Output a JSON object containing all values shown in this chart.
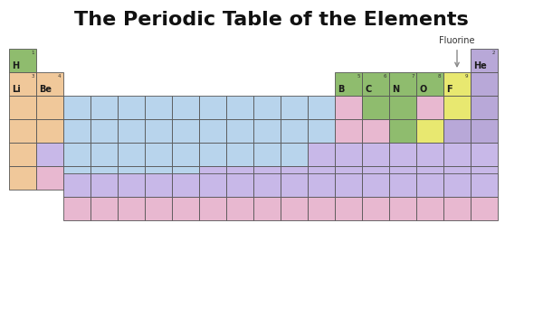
{
  "title": "The Periodic Table of the Elements",
  "title_fontsize": 16,
  "fluorine_label": "Fluorine",
  "background_color": "#ffffff",
  "colors": {
    "green": "#8fbc6e",
    "orange": "#f0c89a",
    "blue": "#b8d4ec",
    "pink": "#e8b8d0",
    "lavender": "#c8b8e8",
    "yellow": "#e8e870",
    "purple": "#b8a8d8",
    "white": "#ffffff"
  },
  "elements": [
    {
      "sym": "H",
      "num": "1",
      "col": 0,
      "row": 0,
      "color": "green"
    },
    {
      "sym": "He",
      "num": "2",
      "col": 17,
      "row": 0,
      "color": "purple"
    },
    {
      "sym": "Li",
      "num": "3",
      "col": 0,
      "row": 1,
      "color": "orange"
    },
    {
      "sym": "Be",
      "num": "4",
      "col": 1,
      "row": 1,
      "color": "orange"
    },
    {
      "sym": "B",
      "num": "5",
      "col": 12,
      "row": 1,
      "color": "green"
    },
    {
      "sym": "C",
      "num": "6",
      "col": 13,
      "row": 1,
      "color": "green"
    },
    {
      "sym": "N",
      "num": "7",
      "col": 14,
      "row": 1,
      "color": "green"
    },
    {
      "sym": "O",
      "num": "8",
      "col": 15,
      "row": 1,
      "color": "green"
    },
    {
      "sym": "F",
      "num": "9",
      "col": 16,
      "row": 1,
      "color": "yellow"
    },
    {
      "sym": "",
      "num": "",
      "col": 17,
      "row": 1,
      "color": "purple"
    }
  ],
  "grid_cells": [
    {
      "col": 0,
      "row": 2,
      "color": "orange"
    },
    {
      "col": 1,
      "row": 2,
      "color": "orange"
    },
    {
      "col": 2,
      "row": 2,
      "color": "blue"
    },
    {
      "col": 3,
      "row": 2,
      "color": "blue"
    },
    {
      "col": 4,
      "row": 2,
      "color": "blue"
    },
    {
      "col": 5,
      "row": 2,
      "color": "blue"
    },
    {
      "col": 6,
      "row": 2,
      "color": "blue"
    },
    {
      "col": 7,
      "row": 2,
      "color": "blue"
    },
    {
      "col": 8,
      "row": 2,
      "color": "blue"
    },
    {
      "col": 9,
      "row": 2,
      "color": "blue"
    },
    {
      "col": 10,
      "row": 2,
      "color": "blue"
    },
    {
      "col": 11,
      "row": 2,
      "color": "blue"
    },
    {
      "col": 12,
      "row": 2,
      "color": "pink"
    },
    {
      "col": 13,
      "row": 2,
      "color": "green"
    },
    {
      "col": 14,
      "row": 2,
      "color": "green"
    },
    {
      "col": 15,
      "row": 2,
      "color": "pink"
    },
    {
      "col": 16,
      "row": 2,
      "color": "yellow"
    },
    {
      "col": 17,
      "row": 2,
      "color": "purple"
    },
    {
      "col": 0,
      "row": 3,
      "color": "orange"
    },
    {
      "col": 1,
      "row": 3,
      "color": "orange"
    },
    {
      "col": 2,
      "row": 3,
      "color": "blue"
    },
    {
      "col": 3,
      "row": 3,
      "color": "blue"
    },
    {
      "col": 4,
      "row": 3,
      "color": "blue"
    },
    {
      "col": 5,
      "row": 3,
      "color": "blue"
    },
    {
      "col": 6,
      "row": 3,
      "color": "blue"
    },
    {
      "col": 7,
      "row": 3,
      "color": "blue"
    },
    {
      "col": 8,
      "row": 3,
      "color": "blue"
    },
    {
      "col": 9,
      "row": 3,
      "color": "blue"
    },
    {
      "col": 10,
      "row": 3,
      "color": "blue"
    },
    {
      "col": 11,
      "row": 3,
      "color": "blue"
    },
    {
      "col": 12,
      "row": 3,
      "color": "pink"
    },
    {
      "col": 13,
      "row": 3,
      "color": "pink"
    },
    {
      "col": 14,
      "row": 3,
      "color": "green"
    },
    {
      "col": 15,
      "row": 3,
      "color": "yellow"
    },
    {
      "col": 16,
      "row": 3,
      "color": "purple"
    },
    {
      "col": 17,
      "row": 3,
      "color": "purple"
    },
    {
      "col": 0,
      "row": 4,
      "color": "orange"
    },
    {
      "col": 1,
      "row": 4,
      "color": "lavender"
    },
    {
      "col": 2,
      "row": 4,
      "color": "blue"
    },
    {
      "col": 3,
      "row": 4,
      "color": "blue"
    },
    {
      "col": 4,
      "row": 4,
      "color": "blue"
    },
    {
      "col": 5,
      "row": 4,
      "color": "blue"
    },
    {
      "col": 6,
      "row": 4,
      "color": "blue"
    },
    {
      "col": 7,
      "row": 4,
      "color": "blue"
    },
    {
      "col": 8,
      "row": 4,
      "color": "blue"
    },
    {
      "col": 9,
      "row": 4,
      "color": "blue"
    },
    {
      "col": 10,
      "row": 4,
      "color": "blue"
    },
    {
      "col": 11,
      "row": 4,
      "color": "lavender"
    },
    {
      "col": 12,
      "row": 4,
      "color": "lavender"
    },
    {
      "col": 13,
      "row": 4,
      "color": "lavender"
    },
    {
      "col": 14,
      "row": 4,
      "color": "lavender"
    },
    {
      "col": 15,
      "row": 4,
      "color": "lavender"
    },
    {
      "col": 16,
      "row": 4,
      "color": "lavender"
    },
    {
      "col": 17,
      "row": 4,
      "color": "lavender"
    },
    {
      "col": 0,
      "row": 5,
      "color": "orange"
    },
    {
      "col": 1,
      "row": 5,
      "color": "pink"
    },
    {
      "col": 2,
      "row": 5,
      "color": "blue"
    },
    {
      "col": 3,
      "row": 5,
      "color": "blue"
    },
    {
      "col": 4,
      "row": 5,
      "color": "blue"
    },
    {
      "col": 5,
      "row": 5,
      "color": "blue"
    },
    {
      "col": 6,
      "row": 5,
      "color": "blue"
    },
    {
      "col": 7,
      "row": 5,
      "color": "lavender"
    },
    {
      "col": 8,
      "row": 5,
      "color": "lavender"
    },
    {
      "col": 9,
      "row": 5,
      "color": "lavender"
    },
    {
      "col": 10,
      "row": 5,
      "color": "lavender"
    },
    {
      "col": 11,
      "row": 5,
      "color": "lavender"
    },
    {
      "col": 12,
      "row": 5,
      "color": "lavender"
    },
    {
      "col": 13,
      "row": 5,
      "color": "lavender"
    },
    {
      "col": 14,
      "row": 5,
      "color": "lavender"
    },
    {
      "col": 15,
      "row": 5,
      "color": "lavender"
    },
    {
      "col": 16,
      "row": 5,
      "color": "lavender"
    },
    {
      "col": 17,
      "row": 5,
      "color": "lavender"
    },
    {
      "col": 2,
      "row": 6,
      "color": "lavender"
    },
    {
      "col": 3,
      "row": 6,
      "color": "lavender"
    },
    {
      "col": 4,
      "row": 6,
      "color": "lavender"
    },
    {
      "col": 5,
      "row": 6,
      "color": "lavender"
    },
    {
      "col": 6,
      "row": 6,
      "color": "lavender"
    },
    {
      "col": 7,
      "row": 6,
      "color": "lavender"
    },
    {
      "col": 8,
      "row": 6,
      "color": "lavender"
    },
    {
      "col": 9,
      "row": 6,
      "color": "lavender"
    },
    {
      "col": 10,
      "row": 6,
      "color": "lavender"
    },
    {
      "col": 11,
      "row": 6,
      "color": "lavender"
    },
    {
      "col": 12,
      "row": 6,
      "color": "lavender"
    },
    {
      "col": 13,
      "row": 6,
      "color": "lavender"
    },
    {
      "col": 14,
      "row": 6,
      "color": "lavender"
    },
    {
      "col": 15,
      "row": 6,
      "color": "lavender"
    },
    {
      "col": 16,
      "row": 6,
      "color": "lavender"
    },
    {
      "col": 17,
      "row": 6,
      "color": "lavender"
    },
    {
      "col": 2,
      "row": 7,
      "color": "pink"
    },
    {
      "col": 3,
      "row": 7,
      "color": "pink"
    },
    {
      "col": 4,
      "row": 7,
      "color": "pink"
    },
    {
      "col": 5,
      "row": 7,
      "color": "pink"
    },
    {
      "col": 6,
      "row": 7,
      "color": "pink"
    },
    {
      "col": 7,
      "row": 7,
      "color": "pink"
    },
    {
      "col": 8,
      "row": 7,
      "color": "pink"
    },
    {
      "col": 9,
      "row": 7,
      "color": "pink"
    },
    {
      "col": 10,
      "row": 7,
      "color": "pink"
    },
    {
      "col": 11,
      "row": 7,
      "color": "pink"
    },
    {
      "col": 12,
      "row": 7,
      "color": "pink"
    },
    {
      "col": 13,
      "row": 7,
      "color": "pink"
    },
    {
      "col": 14,
      "row": 7,
      "color": "pink"
    },
    {
      "col": 15,
      "row": 7,
      "color": "pink"
    },
    {
      "col": 16,
      "row": 7,
      "color": "pink"
    },
    {
      "col": 17,
      "row": 7,
      "color": "pink"
    }
  ]
}
